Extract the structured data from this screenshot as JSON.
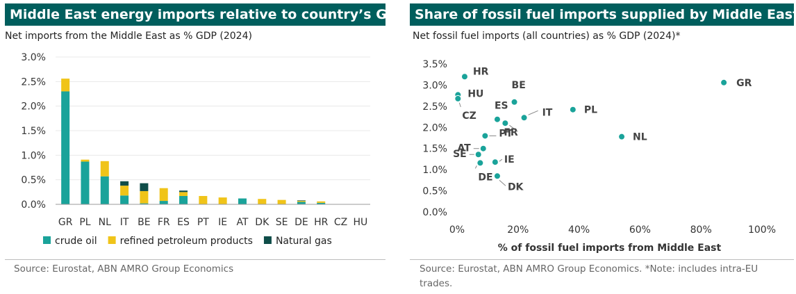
{
  "left": {
    "title": "Middle East energy imports relative to country’s GDP",
    "subtitle": "Net imports from the Middle East as % GDP (2024)",
    "source": "Source: Eurostat, ABN AMRO Group Economics"
  },
  "right": {
    "title": "Share of fossil fuel imports supplied by Middle East",
    "subtitle": "Net fossil fuel imports (all countries) as % GDP (2024)*",
    "source": "Source: Eurostat, ABN AMRO Group Economics. *Note: includes intra-EU trades."
  },
  "colors": {
    "header_bg": "#005e5d",
    "crude_oil": "#1aa39a",
    "refined": "#f0c419",
    "natural_gas": "#0f4d49",
    "axis_text": "#333333"
  },
  "chart_data": [
    {
      "type": "bar",
      "stacked": true,
      "title": "Middle East energy imports relative to country’s GDP",
      "ylabel": "Net imports from the Middle East as % GDP (2024)",
      "ylim": [
        0,
        3.0
      ],
      "yticks": [
        "0.0%",
        "0.5%",
        "1.0%",
        "1.5%",
        "2.0%",
        "2.5%",
        "3.0%"
      ],
      "ytick_values": [
        0,
        0.5,
        1.0,
        1.5,
        2.0,
        2.5,
        3.0
      ],
      "categories": [
        "GR",
        "PL",
        "NL",
        "IT",
        "BE",
        "FR",
        "ES",
        "PT",
        "IE",
        "AT",
        "DK",
        "SE",
        "DE",
        "HR",
        "CZ",
        "HU"
      ],
      "series": [
        {
          "name": "crude oil",
          "color": "#1aa39a",
          "values": [
            2.3,
            0.87,
            0.57,
            0.18,
            0.02,
            0.07,
            0.17,
            0.0,
            0.0,
            0.12,
            0.0,
            0.0,
            0.05,
            0.03,
            0.0,
            0.0
          ]
        },
        {
          "name": "refined petroleum products",
          "color": "#f0c419",
          "values": [
            0.26,
            0.04,
            0.31,
            0.2,
            0.25,
            0.26,
            0.08,
            0.17,
            0.14,
            0.0,
            0.11,
            0.09,
            0.02,
            0.03,
            0.0,
            0.0
          ]
        },
        {
          "name": "Natural gas",
          "color": "#0f4d49",
          "values": [
            0.0,
            0.0,
            0.0,
            0.09,
            0.16,
            0.0,
            0.03,
            0.0,
            0.0,
            0.0,
            0.0,
            0.0,
            0.01,
            0.0,
            0.0,
            0.0
          ]
        }
      ],
      "legend": "bottom"
    },
    {
      "type": "scatter",
      "title": "Share of fossil fuel imports supplied by Middle East",
      "ylabel": "Net fossil fuel imports (all countries) as % GDP (2024)*",
      "xlabel": "% of fossil fuel imports from Middle East",
      "xlim": [
        0,
        100
      ],
      "ylim": [
        0,
        3.5
      ],
      "xticks": [
        "0%",
        "20%",
        "40%",
        "60%",
        "80%",
        "100%"
      ],
      "xtick_values": [
        0,
        20,
        40,
        60,
        80,
        100
      ],
      "yticks": [
        "0.0%",
        "0.5%",
        "1.0%",
        "1.5%",
        "2.0%",
        "2.5%",
        "3.0%",
        "3.5%"
      ],
      "ytick_values": [
        0,
        0.5,
        1.0,
        1.5,
        2.0,
        2.5,
        3.0,
        3.5
      ],
      "points": [
        {
          "label": "GR",
          "x": 87.5,
          "y": 3.06
        },
        {
          "label": "HR",
          "x": 2.5,
          "y": 3.2
        },
        {
          "label": "HU",
          "x": 0.3,
          "y": 2.77
        },
        {
          "label": "CZ",
          "x": 0.3,
          "y": 2.68
        },
        {
          "label": "BE",
          "x": 18.8,
          "y": 2.6
        },
        {
          "label": "PL",
          "x": 38.0,
          "y": 2.42
        },
        {
          "label": "IT",
          "x": 22.0,
          "y": 2.23
        },
        {
          "label": "ES",
          "x": 13.2,
          "y": 2.19
        },
        {
          "label": "FR",
          "x": 15.8,
          "y": 2.1
        },
        {
          "label": "NL",
          "x": 54.0,
          "y": 1.78
        },
        {
          "label": "PT",
          "x": 9.2,
          "y": 1.8
        },
        {
          "label": "AT",
          "x": 8.6,
          "y": 1.5
        },
        {
          "label": "SE",
          "x": 7.0,
          "y": 1.36
        },
        {
          "label": "IE",
          "x": 12.5,
          "y": 1.18
        },
        {
          "label": "DE",
          "x": 7.6,
          "y": 1.16
        },
        {
          "label": "DK",
          "x": 13.2,
          "y": 0.85
        }
      ]
    }
  ]
}
